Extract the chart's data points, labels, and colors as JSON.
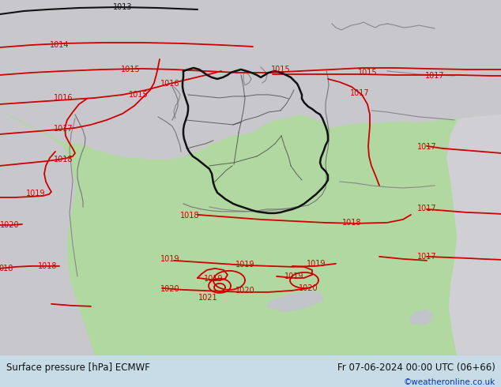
{
  "title_left": "Surface pressure [hPa] ECMWF",
  "title_right": "Fr 07-06-2024 00:00 UTC (06+66)",
  "watermark": "©weatheronline.co.uk",
  "bg_green": "#b0d8a0",
  "bg_gray": "#c8c8cc",
  "bg_light_gray": "#d0d0d4",
  "sea_gray": "#c0c4c8",
  "contour_red": "#cc0000",
  "contour_black": "#111111",
  "border_black": "#111111",
  "border_gray": "#888888",
  "text_black": "#111111",
  "text_blue": "#0033cc",
  "text_red": "#cc0000",
  "bottom_color": "#c8dce8",
  "figsize": [
    6.34,
    4.9
  ],
  "dpi": 100
}
